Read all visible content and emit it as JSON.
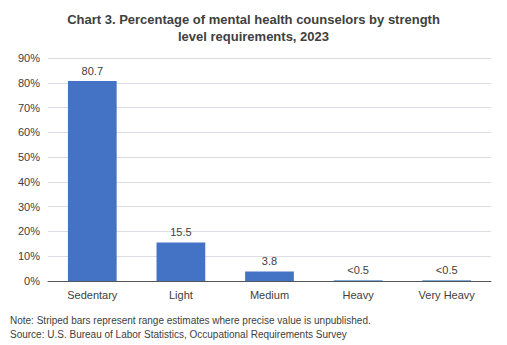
{
  "chart_data": {
    "type": "bar",
    "title": "Chart 3. Percentage of mental health counselors by strength\nlevel requirements, 2023",
    "categories": [
      "Sedentary",
      "Light",
      "Medium",
      "Heavy",
      "Very Heavy"
    ],
    "values": [
      80.7,
      15.5,
      3.8,
      0.3,
      0.3
    ],
    "value_labels": [
      "80.7",
      "15.5",
      "3.8",
      "<0.5",
      "<0.5"
    ],
    "data_labels": true,
    "colors": [
      "#4472C4",
      "#4472C4",
      "#4472C4",
      "#5B8FC7",
      "#5B8FC7"
    ],
    "ylim": [
      0,
      90
    ],
    "yticks": [
      {
        "value": 0,
        "label": "0%"
      },
      {
        "value": 10,
        "label": "10%"
      },
      {
        "value": 20,
        "label": "20%"
      },
      {
        "value": 30,
        "label": "30%"
      },
      {
        "value": 40,
        "label": "40%"
      },
      {
        "value": 50,
        "label": "50%"
      },
      {
        "value": 60,
        "label": "60%"
      },
      {
        "value": 70,
        "label": "70%"
      },
      {
        "value": 80,
        "label": "80%"
      },
      {
        "value": 90,
        "label": "90%"
      }
    ],
    "grid": true,
    "annotations": [
      "Note: Striped bars represent range estimates where precise value is unpublished.",
      "Source: U.S. Bureau of Labor Statistics, Occupational Requirements Survey"
    ]
  }
}
